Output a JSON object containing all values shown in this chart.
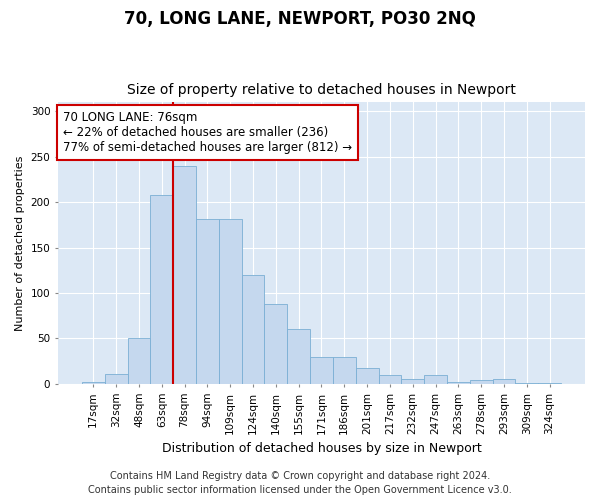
{
  "title1": "70, LONG LANE, NEWPORT, PO30 2NQ",
  "title2": "Size of property relative to detached houses in Newport",
  "xlabel": "Distribution of detached houses by size in Newport",
  "ylabel": "Number of detached properties",
  "categories": [
    "17sqm",
    "32sqm",
    "48sqm",
    "63sqm",
    "78sqm",
    "94sqm",
    "109sqm",
    "124sqm",
    "140sqm",
    "155sqm",
    "171sqm",
    "186sqm",
    "201sqm",
    "217sqm",
    "232sqm",
    "247sqm",
    "263sqm",
    "278sqm",
    "293sqm",
    "309sqm",
    "324sqm"
  ],
  "values": [
    2,
    11,
    51,
    208,
    240,
    182,
    182,
    120,
    88,
    60,
    30,
    30,
    18,
    10,
    5,
    10,
    2,
    4,
    5,
    1,
    1
  ],
  "bar_color": "#c5d8ee",
  "bar_edge_color": "#7aafd4",
  "vline_x_index": 4,
  "vline_color": "#cc0000",
  "annotation_text": "70 LONG LANE: 76sqm\n← 22% of detached houses are smaller (236)\n77% of semi-detached houses are larger (812) →",
  "annotation_box_facecolor": "#ffffff",
  "annotation_box_edgecolor": "#cc0000",
  "ylim": [
    0,
    310
  ],
  "yticks": [
    0,
    50,
    100,
    150,
    200,
    250,
    300
  ],
  "bg_color": "#dce8f5",
  "fig_facecolor": "#ffffff",
  "footer_text": "Contains HM Land Registry data © Crown copyright and database right 2024.\nContains public sector information licensed under the Open Government Licence v3.0.",
  "title1_fontsize": 12,
  "title2_fontsize": 10,
  "xlabel_fontsize": 9,
  "ylabel_fontsize": 8,
  "tick_fontsize": 7.5,
  "annotation_fontsize": 8.5,
  "footer_fontsize": 7
}
